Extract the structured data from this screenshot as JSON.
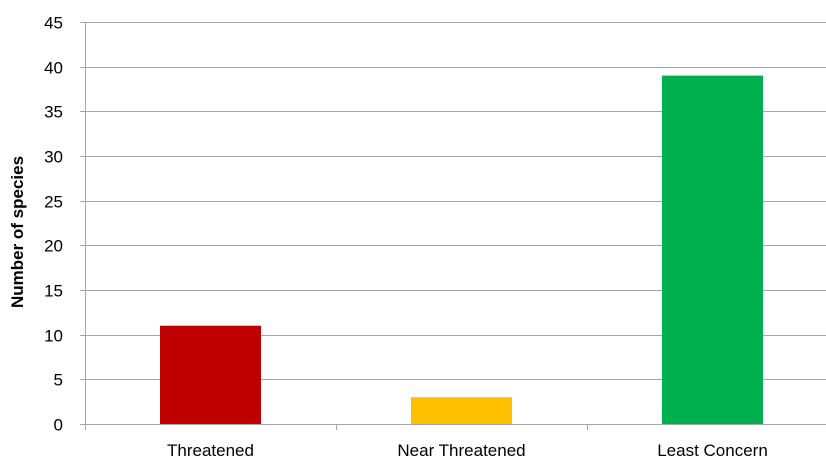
{
  "chart_data": {
    "type": "bar",
    "title": "",
    "xlabel": "",
    "ylabel": "Number of species",
    "categories": [
      "Threatened",
      "Near Threatened",
      "Least Concern"
    ],
    "values": [
      11,
      3,
      39
    ],
    "colors": [
      "#c00000",
      "#ffc000",
      "#00b050"
    ],
    "ylim": [
      0,
      45
    ],
    "yticks": [
      0,
      5,
      10,
      15,
      20,
      25,
      30,
      35,
      40,
      45
    ],
    "grid": true,
    "legend": "none"
  }
}
